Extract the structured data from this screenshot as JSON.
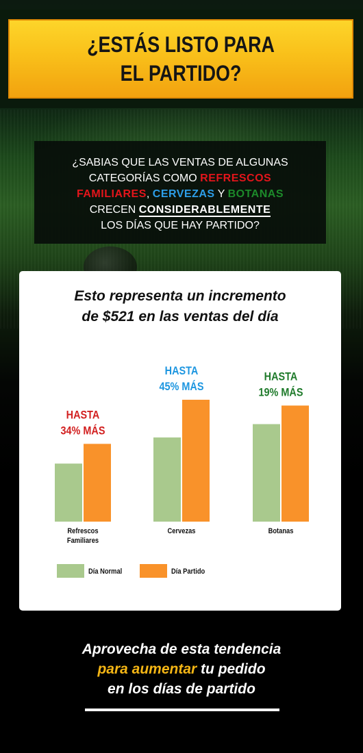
{
  "header": {
    "title_line1": "¿ESTÁS LISTO PARA",
    "title_line2": "EL PARTIDO?"
  },
  "info": {
    "line1": "¿SABIAS QUE LAS VENTAS DE ALGUNAS",
    "line2_pre": "CATEGORÍAS COMO ",
    "refrescos": "REFRESCOS",
    "familiares": "FAMILIARES",
    "sep1": ", ",
    "cervezas": "CERVEZAS",
    "sep2": " Y ",
    "botanas": "BOTANAS",
    "line4_pre": "CRECEN ",
    "considerablemente": "CONSIDERABLEMENTE",
    "line5": "LOS DÍAS QUE HAY PARTIDO?"
  },
  "card": {
    "title_line1": "Esto representa un incremento",
    "title_line2": "de $521 en las ventas del día"
  },
  "chart_data": {
    "type": "bar",
    "categories": [
      "Refrescos Familiares",
      "Cervezas",
      "Botanas"
    ],
    "category_lines": [
      [
        "Refrescos",
        "Familiares"
      ],
      [
        "Cervezas"
      ],
      [
        "Botanas"
      ]
    ],
    "series": [
      {
        "name": "Día Normal",
        "values": [
          100,
          145,
          168
        ],
        "color": "#a9c98d"
      },
      {
        "name": "Día Partido",
        "values": [
          134,
          210,
          200
        ],
        "color": "#f9922a"
      }
    ],
    "annotations": [
      {
        "category": "Refrescos Familiares",
        "line1": "HASTA",
        "line2": "34% MÁS",
        "color": "#d21f1f"
      },
      {
        "category": "Cervezas",
        "line1": "HASTA",
        "line2": "45% MÁS",
        "color": "#1d96e0"
      },
      {
        "category": "Botanas",
        "line1": "HASTA",
        "line2": "19% MÁS",
        "color": "#1e7a2a"
      }
    ],
    "ylim": [
      0,
      230
    ],
    "grid": false,
    "legend": "bottom-left"
  },
  "cta": {
    "line1": "Aprovecha de esta tendencia",
    "line2_yellow": "para aumentar",
    "line2_rest": " tu pedido",
    "line3": "en los días de partido"
  },
  "colors": {
    "title_gold_top": "#fdd52a",
    "title_gold_bottom": "#f2a20f",
    "accent_red": "#e3151b",
    "accent_blue": "#2d9ee8",
    "accent_green": "#1c8a2a",
    "cta_yellow": "#f5b615"
  }
}
